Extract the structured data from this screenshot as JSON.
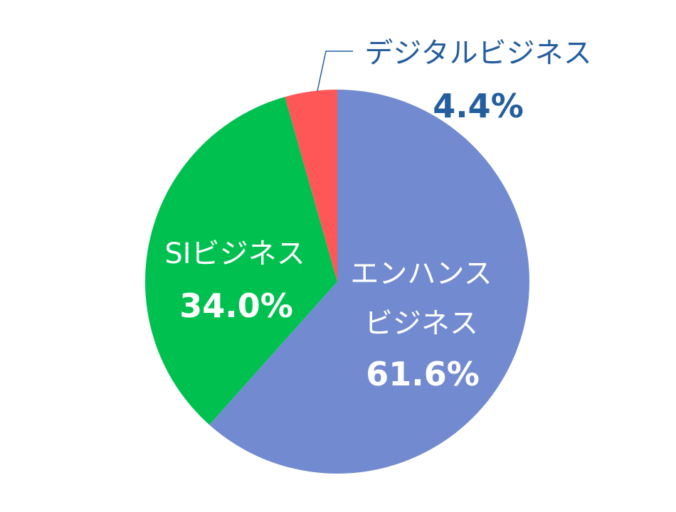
{
  "chart_data": {
    "type": "pie",
    "title": "",
    "start": "top",
    "direction": "clockwise",
    "slices": [
      {
        "name": "エンハンスビジネス",
        "label_lines": [
          "エンハンス",
          "ビジネス"
        ],
        "value": 61.6,
        "value_label": "61.6%",
        "color": "#728BD0",
        "label_color": "#FFFFFF"
      },
      {
        "name": "SIビジネス",
        "label_lines": [
          "SIビジネス"
        ],
        "value": 34.0,
        "value_label": "34.0%",
        "color": "#00C050",
        "label_color": "#FFFFFF"
      },
      {
        "name": "デジタルビジネス",
        "label_lines": [
          "デジタルビジネス"
        ],
        "value": 4.4,
        "value_label": "4.4%",
        "color": "#FF5757",
        "label_color": "#255E9E"
      }
    ]
  }
}
